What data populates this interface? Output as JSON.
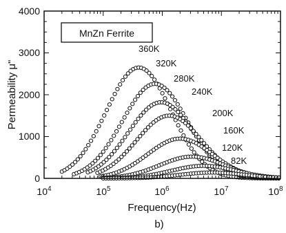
{
  "chart_data": {
    "type": "scatter",
    "legend_box": "MnZn Ferrite",
    "xlabel": "Frequency(Hz)",
    "ylabel": "Permeability μ\"",
    "caption": "b)",
    "xscale": "log",
    "xlim": [
      10000,
      100000000
    ],
    "ylim": [
      0,
      4000
    ],
    "yticks": [
      0,
      1000,
      2000,
      3000,
      4000
    ],
    "ytick_labels": [
      "0",
      "1000",
      "2000",
      "3000",
      "4000"
    ],
    "xticks": [
      10000,
      100000,
      1000000,
      10000000,
      100000000
    ],
    "xtick_labels": [
      {
        "base": "10",
        "exp": "4"
      },
      {
        "base": "10",
        "exp": "5"
      },
      {
        "base": "10",
        "exp": "6"
      },
      {
        "base": "10",
        "exp": "7"
      },
      {
        "base": "10",
        "exp": "8"
      }
    ],
    "grid": false,
    "marker": "open-circle",
    "series": [
      {
        "name": "360K",
        "peak_freq": 400000,
        "peak_value": 2650,
        "start_freq": 20000
      },
      {
        "name": "320K",
        "peak_freq": 750000,
        "peak_value": 2260,
        "start_freq": 32000
      },
      {
        "name": "280K",
        "peak_freq": 950000,
        "peak_value": 1820,
        "start_freq": 55000
      },
      {
        "name": "240K",
        "peak_freq": 1300000,
        "peak_value": 1500,
        "start_freq": 80000
      },
      {
        "name": "200K",
        "peak_freq": 2000000,
        "peak_value": 950,
        "start_freq": 90000
      },
      {
        "name": "160K",
        "peak_freq": 3200000,
        "peak_value": 520,
        "start_freq": 100000
      },
      {
        "name": "120K",
        "peak_freq": 5000000,
        "peak_value": 300,
        "start_freq": 100000
      },
      {
        "name": "82K",
        "peak_freq": 7000000,
        "peak_value": 140,
        "start_freq": 100000
      }
    ]
  }
}
